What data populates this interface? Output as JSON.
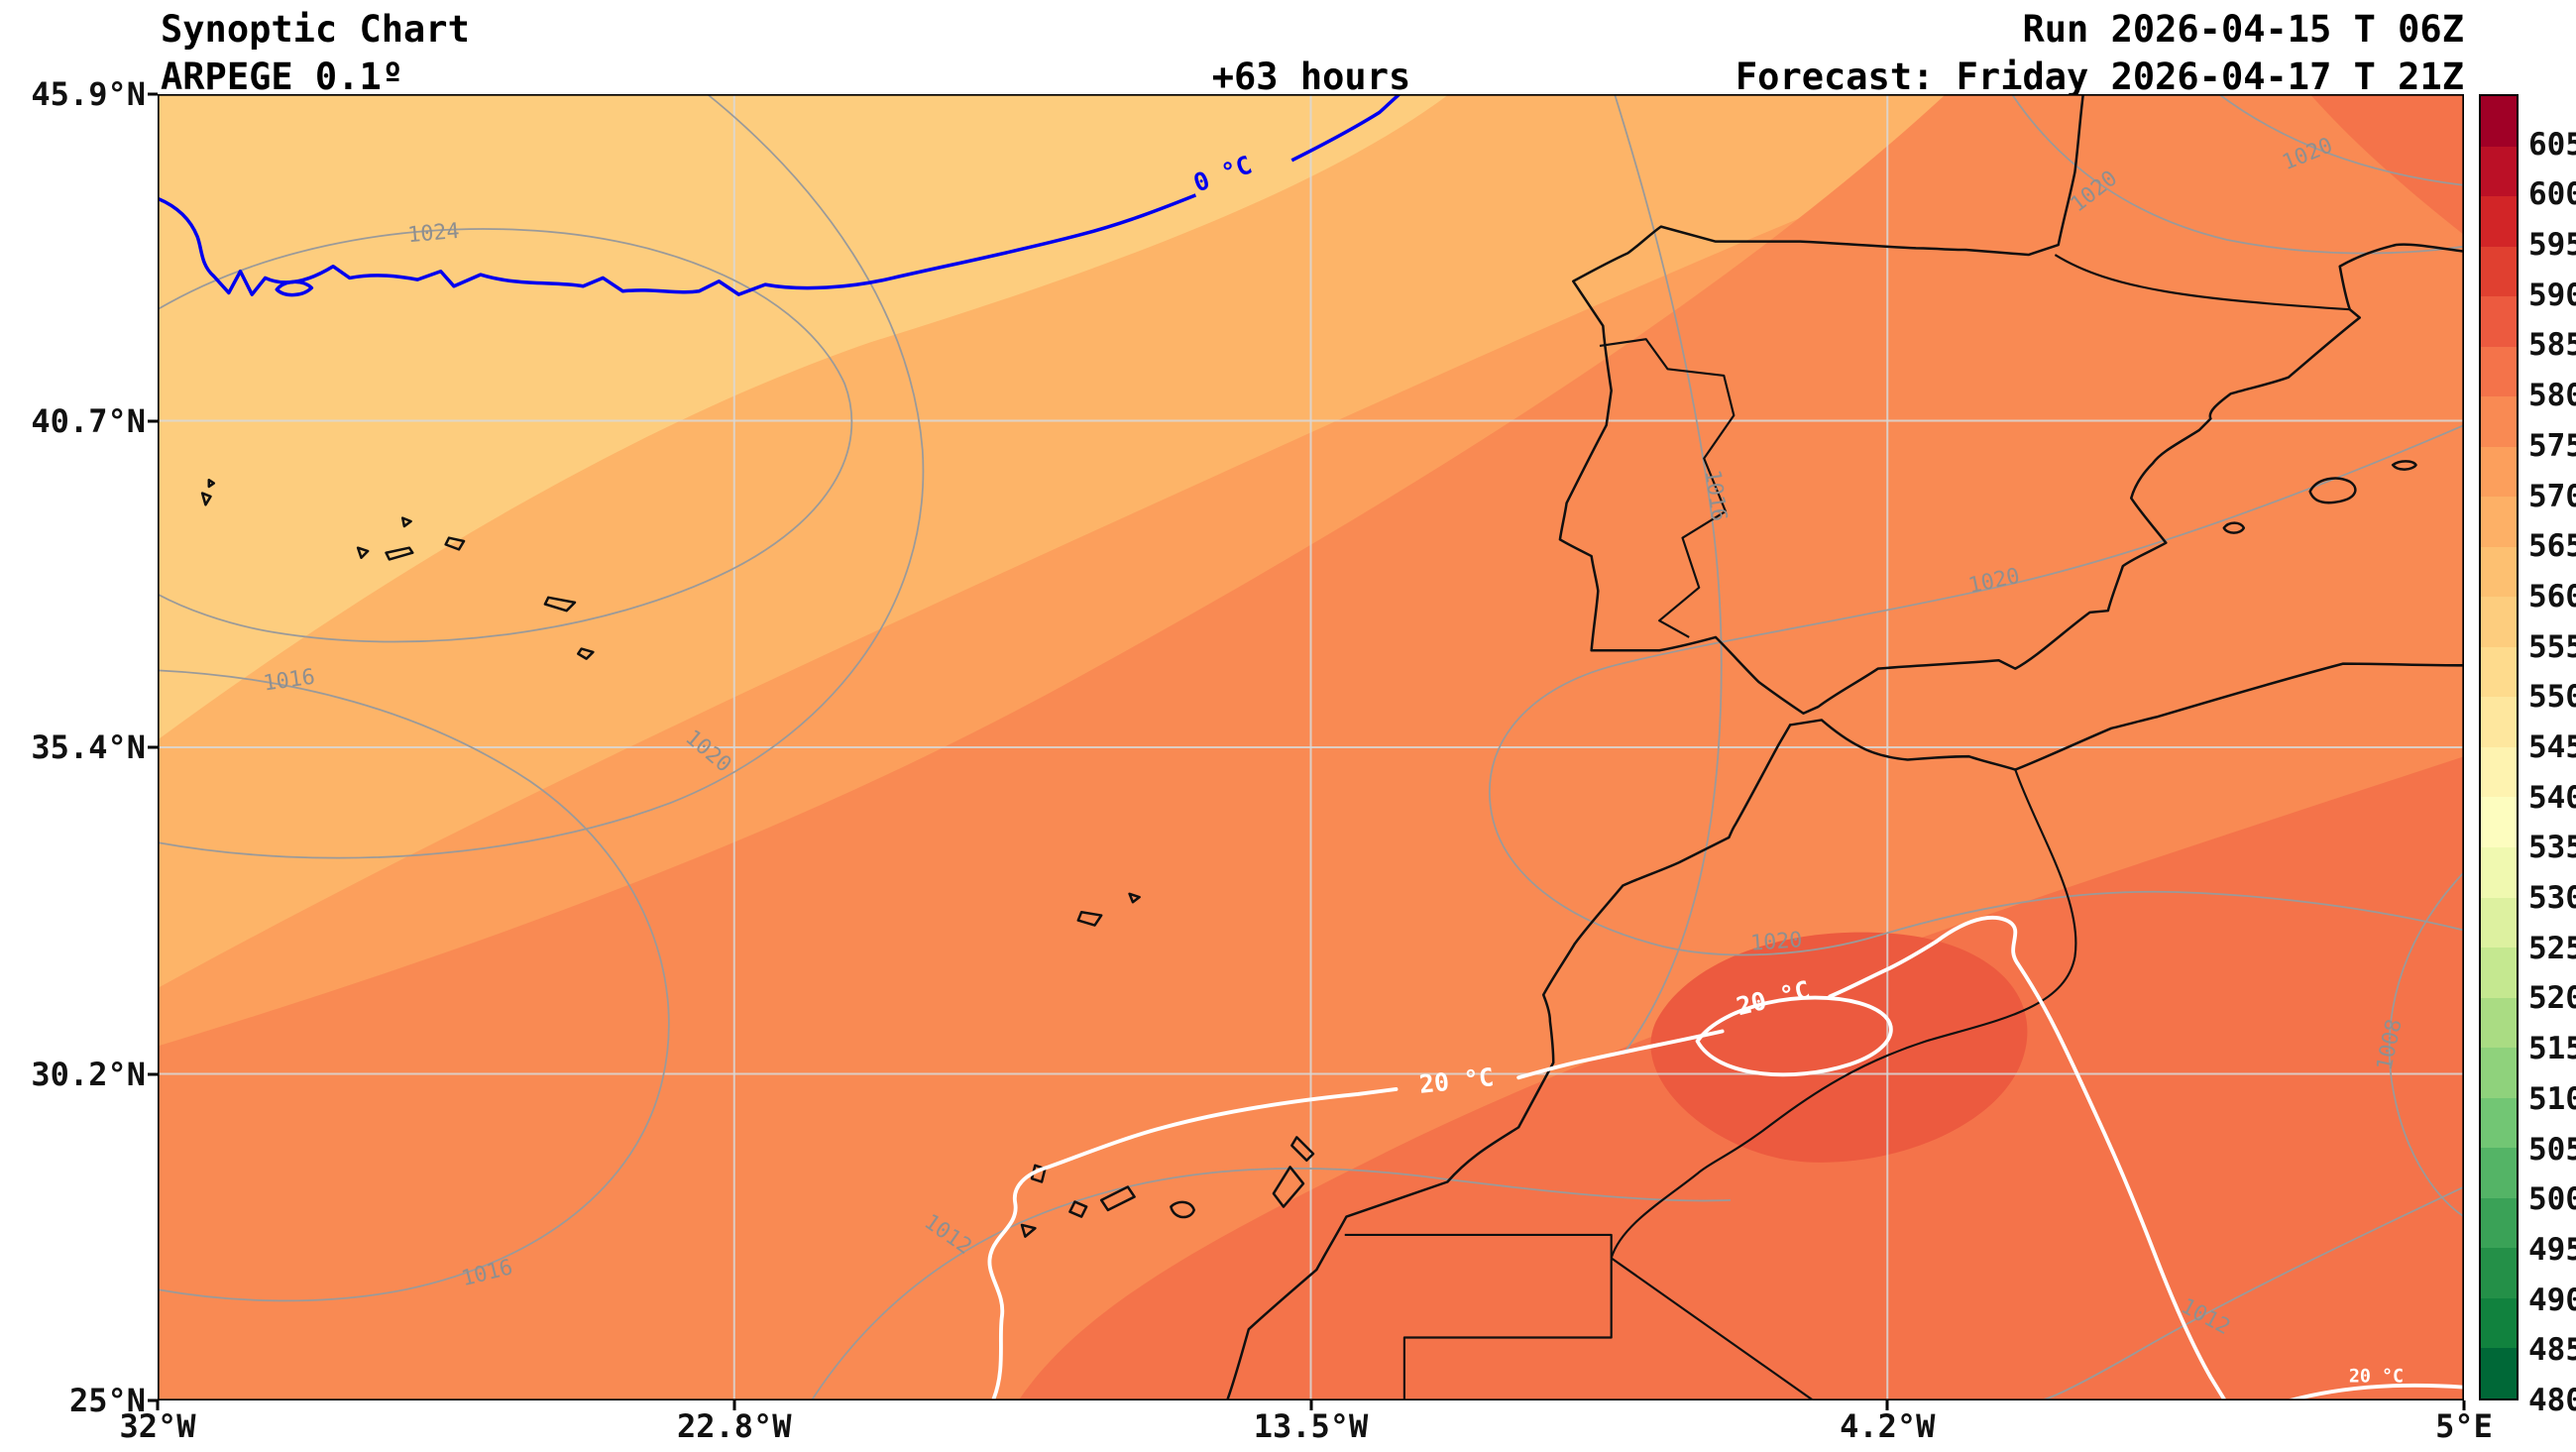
{
  "header": {
    "title": "Synoptic Chart",
    "model": "ARPEGE 0.1º",
    "lead_time": "+63 hours",
    "run": "Run 2026-04-15 T 06Z",
    "forecast": "Forecast: Friday 2026-04-17 T 21Z"
  },
  "axes": {
    "y_ticks": [
      "45.9°N",
      "40.7°N",
      "35.4°N",
      "30.2°N",
      "25°N"
    ],
    "x_ticks": [
      "32°W",
      "22.8°W",
      "13.5°W",
      "4.2°W",
      "5°E"
    ]
  },
  "colorbar": {
    "ticks": [
      605,
      600,
      595,
      590,
      585,
      580,
      575,
      570,
      565,
      560,
      555,
      550,
      545,
      540,
      535,
      530,
      525,
      520,
      515,
      510,
      505,
      500,
      495,
      490,
      485,
      480
    ],
    "colors": [
      "#a00026",
      "#bb1026",
      "#d22527",
      "#e04030",
      "#ec5a3f",
      "#f4734a",
      "#f98a53",
      "#fc9f5c",
      "#fdb066",
      "#fdc071",
      "#fdcd7e",
      "#fedb8d",
      "#fee79e",
      "#fef3b0",
      "#fdfdbf",
      "#f0f9b0",
      "#ddf1a0",
      "#c5e890",
      "#aadc83",
      "#8fd27c",
      "#72c674",
      "#54b466",
      "#3aa257",
      "#249048",
      "#11823e",
      "#006837"
    ]
  },
  "map": {
    "fill_bands": [
      "#fdcd7e",
      "#fdb468",
      "#fc9f5c",
      "#f98a53",
      "#f4734a",
      "#ec5a3f"
    ],
    "colors": {
      "coastline": "#101010",
      "freezing_line": "#0000ee",
      "warm_line": "#ffffff",
      "isobar_line": "#9a9a9a",
      "isobar_label": "#8f8f8f",
      "frame": "#000000"
    },
    "isobar_labels": [
      "1024",
      "1020",
      "1016",
      "1016",
      "1012",
      "1016",
      "1020",
      "1020",
      "1008",
      "1012",
      "1020",
      "1020"
    ],
    "temp_labels": [
      "0 °C",
      "20 °C",
      "20 °C",
      "20 °C"
    ]
  },
  "chart_data": {
    "type": "contour-map",
    "title": "Synoptic Chart",
    "model": "ARPEGE 0.1º",
    "forecast_lead": "+63 hours",
    "run": "Run 2026-04-15 T 06Z",
    "valid": "Forecast: Friday 2026-04-17 T 21Z",
    "lat_ticks": [
      "45.9°N",
      "40.7°N",
      "35.4°N",
      "30.2°N",
      "25°N"
    ],
    "lon_ticks": [
      "32°W",
      "22.8°W",
      "13.5°W",
      "4.2°W",
      "5°E"
    ],
    "colorbar_levels": [
      605,
      600,
      595,
      590,
      585,
      580,
      575,
      570,
      565,
      560,
      555,
      550,
      545,
      540,
      535,
      530,
      525,
      520,
      515,
      510,
      505,
      500,
      495,
      490,
      485,
      480
    ],
    "isotherm_labels_c": [
      0,
      20
    ],
    "isobar_labels_hpa": [
      1008,
      1012,
      1016,
      1020,
      1024
    ]
  }
}
